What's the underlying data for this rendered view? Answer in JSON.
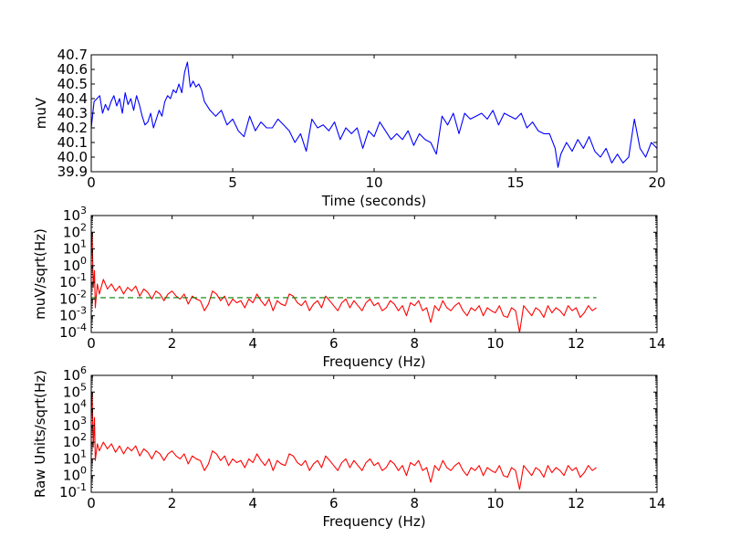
{
  "chart_data": [
    {
      "type": "line",
      "xlabel": "Time (seconds)",
      "ylabel": "muV",
      "xlim": [
        0,
        20
      ],
      "ylim": [
        39.9,
        40.7
      ],
      "x_scale": "linear",
      "y_scale": "linear",
      "grid": false,
      "xticks": [
        "0",
        "5",
        "10",
        "15",
        "20"
      ],
      "yticks": [
        "39.9",
        "40.0",
        "40.1",
        "40.2",
        "40.3",
        "40.4",
        "40.5",
        "40.6",
        "40.7"
      ],
      "series": [
        {
          "color": "#0000ff",
          "x": [
            0.0,
            0.1,
            0.2,
            0.3,
            0.4,
            0.5,
            0.6,
            0.7,
            0.8,
            0.9,
            1.0,
            1.1,
            1.2,
            1.3,
            1.4,
            1.5,
            1.6,
            1.7,
            1.8,
            1.9,
            2.0,
            2.1,
            2.2,
            2.3,
            2.4,
            2.5,
            2.6,
            2.7,
            2.8,
            2.9,
            3.0,
            3.1,
            3.2,
            3.3,
            3.4,
            3.5,
            3.6,
            3.7,
            3.8,
            3.9,
            4.0,
            4.2,
            4.4,
            4.6,
            4.8,
            5.0,
            5.2,
            5.4,
            5.6,
            5.8,
            6.0,
            6.2,
            6.4,
            6.6,
            6.8,
            7.0,
            7.2,
            7.4,
            7.6,
            7.8,
            8.0,
            8.2,
            8.4,
            8.6,
            8.8,
            9.0,
            9.2,
            9.4,
            9.6,
            9.8,
            10.0,
            10.2,
            10.4,
            10.6,
            10.8,
            11.0,
            11.2,
            11.4,
            11.6,
            11.8,
            12.0,
            12.2,
            12.4,
            12.6,
            12.8,
            13.0,
            13.2,
            13.4,
            13.6,
            13.8,
            14.0,
            14.2,
            14.4,
            14.6,
            14.8,
            15.0,
            15.2,
            15.4,
            15.6,
            15.8,
            16.0,
            16.2,
            16.4,
            16.5,
            16.6,
            16.8,
            17.0,
            17.2,
            17.4,
            17.6,
            17.8,
            18.0,
            18.2,
            18.4,
            18.6,
            18.8,
            19.0,
            19.2,
            19.4,
            19.6,
            19.8,
            20.0
          ],
          "values": [
            40.2,
            40.38,
            40.4,
            40.42,
            40.3,
            40.36,
            40.32,
            40.38,
            40.42,
            40.35,
            40.4,
            40.3,
            40.44,
            40.36,
            40.4,
            40.32,
            40.42,
            40.36,
            40.28,
            40.22,
            40.24,
            40.3,
            40.2,
            40.26,
            40.32,
            40.28,
            40.38,
            40.42,
            40.4,
            40.46,
            40.44,
            40.5,
            40.44,
            40.58,
            40.65,
            40.48,
            40.52,
            40.48,
            40.5,
            40.46,
            40.38,
            40.32,
            40.28,
            40.32,
            40.22,
            40.26,
            40.18,
            40.14,
            40.28,
            40.18,
            40.24,
            40.2,
            40.2,
            40.26,
            40.22,
            40.18,
            40.1,
            40.16,
            40.04,
            40.26,
            40.2,
            40.22,
            40.18,
            40.24,
            40.12,
            40.2,
            40.16,
            40.2,
            40.06,
            40.18,
            40.14,
            40.24,
            40.18,
            40.12,
            40.16,
            40.12,
            40.18,
            40.08,
            40.16,
            40.12,
            40.1,
            40.02,
            40.28,
            40.22,
            40.3,
            40.16,
            40.3,
            40.26,
            40.28,
            40.3,
            40.26,
            40.32,
            40.22,
            40.3,
            40.28,
            40.26,
            40.3,
            40.2,
            40.24,
            40.18,
            40.16,
            40.16,
            40.06,
            39.93,
            40.02,
            40.1,
            40.04,
            40.12,
            40.06,
            40.14,
            40.04,
            40.0,
            40.06,
            39.96,
            40.02,
            39.96,
            40.0,
            40.26,
            40.06,
            40.0,
            40.1,
            40.06
          ]
        }
      ]
    },
    {
      "type": "line",
      "xlabel": "Frequency (Hz)",
      "ylabel": "muV/sqrt(Hz)",
      "xlim": [
        0,
        14
      ],
      "x_scale": "linear",
      "y_scale": "log",
      "ylim_exp": [
        -4,
        3
      ],
      "grid": false,
      "xticks": [
        "0",
        "2",
        "4",
        "6",
        "8",
        "10",
        "12",
        "14"
      ],
      "ytick_base": "10",
      "ytick_exps": [
        "-4",
        "-3",
        "-2",
        "-1",
        "0",
        "1",
        "2",
        "3"
      ],
      "series": [
        {
          "color": "#ff0000",
          "style": "solid",
          "x": [
            0.0,
            0.02,
            0.05,
            0.08,
            0.1,
            0.15,
            0.2,
            0.3,
            0.4,
            0.5,
            0.6,
            0.7,
            0.8,
            0.9,
            1.0,
            1.1,
            1.2,
            1.3,
            1.4,
            1.5,
            1.6,
            1.7,
            1.8,
            1.9,
            2.0,
            2.1,
            2.2,
            2.3,
            2.4,
            2.5,
            2.6,
            2.7,
            2.8,
            2.9,
            3.0,
            3.1,
            3.2,
            3.3,
            3.4,
            3.5,
            3.6,
            3.7,
            3.8,
            3.9,
            4.0,
            4.1,
            4.2,
            4.3,
            4.4,
            4.5,
            4.6,
            4.7,
            4.8,
            4.9,
            5.0,
            5.1,
            5.2,
            5.3,
            5.4,
            5.5,
            5.6,
            5.7,
            5.8,
            5.9,
            6.0,
            6.1,
            6.2,
            6.3,
            6.4,
            6.5,
            6.6,
            6.7,
            6.8,
            6.9,
            7.0,
            7.1,
            7.2,
            7.3,
            7.4,
            7.5,
            7.6,
            7.7,
            7.8,
            7.9,
            8.0,
            8.1,
            8.2,
            8.3,
            8.4,
            8.5,
            8.6,
            8.7,
            8.8,
            8.9,
            9.0,
            9.1,
            9.2,
            9.3,
            9.4,
            9.5,
            9.6,
            9.7,
            9.8,
            9.9,
            10.0,
            10.1,
            10.2,
            10.3,
            10.4,
            10.5,
            10.6,
            10.7,
            10.8,
            10.9,
            11.0,
            11.1,
            11.2,
            11.3,
            11.4,
            11.5,
            11.6,
            11.7,
            11.8,
            11.9,
            12.0,
            12.1,
            12.2,
            12.3,
            12.4,
            12.5
          ],
          "values": [
            10,
            100,
            0.05,
            0.5,
            0.003,
            0.08,
            0.02,
            0.15,
            0.04,
            0.08,
            0.03,
            0.06,
            0.02,
            0.05,
            0.03,
            0.06,
            0.015,
            0.04,
            0.025,
            0.01,
            0.03,
            0.02,
            0.008,
            0.02,
            0.03,
            0.015,
            0.01,
            0.02,
            0.005,
            0.015,
            0.01,
            0.008,
            0.002,
            0.005,
            0.03,
            0.02,
            0.008,
            0.015,
            0.004,
            0.01,
            0.006,
            0.008,
            0.003,
            0.01,
            0.006,
            0.02,
            0.008,
            0.004,
            0.01,
            0.002,
            0.008,
            0.005,
            0.004,
            0.02,
            0.015,
            0.006,
            0.004,
            0.008,
            0.002,
            0.005,
            0.008,
            0.003,
            0.015,
            0.008,
            0.004,
            0.002,
            0.006,
            0.01,
            0.003,
            0.008,
            0.004,
            0.002,
            0.006,
            0.01,
            0.004,
            0.006,
            0.002,
            0.003,
            0.008,
            0.005,
            0.002,
            0.004,
            0.001,
            0.006,
            0.004,
            0.008,
            0.002,
            0.003,
            0.0004,
            0.004,
            0.002,
            0.008,
            0.003,
            0.002,
            0.004,
            0.006,
            0.002,
            0.001,
            0.003,
            0.002,
            0.004,
            0.001,
            0.003,
            0.002,
            0.0015,
            0.004,
            0.001,
            0.0008,
            0.003,
            0.002,
            0.0001,
            0.004,
            0.002,
            0.001,
            0.003,
            0.002,
            0.0008,
            0.004,
            0.0015,
            0.003,
            0.002,
            0.001,
            0.004,
            0.002,
            0.003,
            0.0008,
            0.0015,
            0.004,
            0.002,
            0.003
          ]
        },
        {
          "color": "#008000",
          "style": "dashed",
          "x": [
            0,
            12.5
          ],
          "values": [
            0.012,
            0.012
          ]
        }
      ]
    },
    {
      "type": "line",
      "xlabel": "Frequency (Hz)",
      "ylabel": "Raw Units/sqrt(Hz)",
      "xlim": [
        0,
        14
      ],
      "x_scale": "linear",
      "y_scale": "log",
      "ylim_exp": [
        -1,
        6
      ],
      "grid": false,
      "xticks": [
        "0",
        "2",
        "4",
        "6",
        "8",
        "10",
        "12",
        "14"
      ],
      "ytick_base": "10",
      "ytick_exps": [
        "-1",
        "0",
        "1",
        "2",
        "3",
        "4",
        "5",
        "6"
      ],
      "series": [
        {
          "color": "#ff0000",
          "x": [
            0.0,
            0.02,
            0.05,
            0.08,
            0.1,
            0.15,
            0.2,
            0.3,
            0.4,
            0.5,
            0.6,
            0.7,
            0.8,
            0.9,
            1.0,
            1.1,
            1.2,
            1.3,
            1.4,
            1.5,
            1.6,
            1.7,
            1.8,
            1.9,
            2.0,
            2.1,
            2.2,
            2.3,
            2.4,
            2.5,
            2.6,
            2.7,
            2.8,
            2.9,
            3.0,
            3.1,
            3.2,
            3.3,
            3.4,
            3.5,
            3.6,
            3.7,
            3.8,
            3.9,
            4.0,
            4.1,
            4.2,
            4.3,
            4.4,
            4.5,
            4.6,
            4.7,
            4.8,
            4.9,
            5.0,
            5.1,
            5.2,
            5.3,
            5.4,
            5.5,
            5.6,
            5.7,
            5.8,
            5.9,
            6.0,
            6.1,
            6.2,
            6.3,
            6.4,
            6.5,
            6.6,
            6.7,
            6.8,
            6.9,
            7.0,
            7.1,
            7.2,
            7.3,
            7.4,
            7.5,
            7.6,
            7.7,
            7.8,
            7.9,
            8.0,
            8.1,
            8.2,
            8.3,
            8.4,
            8.5,
            8.6,
            8.7,
            8.8,
            8.9,
            9.0,
            9.1,
            9.2,
            9.3,
            9.4,
            9.5,
            9.6,
            9.7,
            9.8,
            9.9,
            10.0,
            10.1,
            10.2,
            10.3,
            10.4,
            10.5,
            10.6,
            10.7,
            10.8,
            10.9,
            11.0,
            11.1,
            11.2,
            11.3,
            11.4,
            11.5,
            11.6,
            11.7,
            11.8,
            11.9,
            12.0,
            12.1,
            12.2,
            12.3,
            12.4,
            12.5
          ],
          "values": [
            10000,
            100000,
            50,
            3000,
            8,
            80,
            30,
            100,
            40,
            80,
            25,
            60,
            20,
            50,
            30,
            60,
            15,
            40,
            25,
            10,
            30,
            20,
            8,
            20,
            30,
            15,
            10,
            20,
            5,
            15,
            10,
            8,
            2,
            5,
            30,
            20,
            8,
            15,
            4,
            10,
            6,
            8,
            3,
            10,
            6,
            20,
            8,
            4,
            10,
            2,
            8,
            5,
            4,
            20,
            15,
            6,
            4,
            8,
            2,
            5,
            8,
            3,
            15,
            8,
            4,
            2,
            6,
            10,
            3,
            8,
            4,
            2,
            6,
            10,
            4,
            6,
            2,
            3,
            8,
            5,
            2,
            4,
            1,
            6,
            4,
            8,
            2,
            3,
            0.4,
            4,
            2,
            8,
            3,
            2,
            4,
            6,
            2,
            1,
            3,
            2,
            4,
            1,
            3,
            2,
            1.5,
            4,
            1,
            0.8,
            3,
            2,
            0.15,
            4,
            2,
            1,
            3,
            2,
            0.8,
            4,
            1.5,
            3,
            2,
            1,
            4,
            2,
            3,
            0.8,
            1.5,
            4,
            2,
            3
          ]
        }
      ]
    }
  ]
}
